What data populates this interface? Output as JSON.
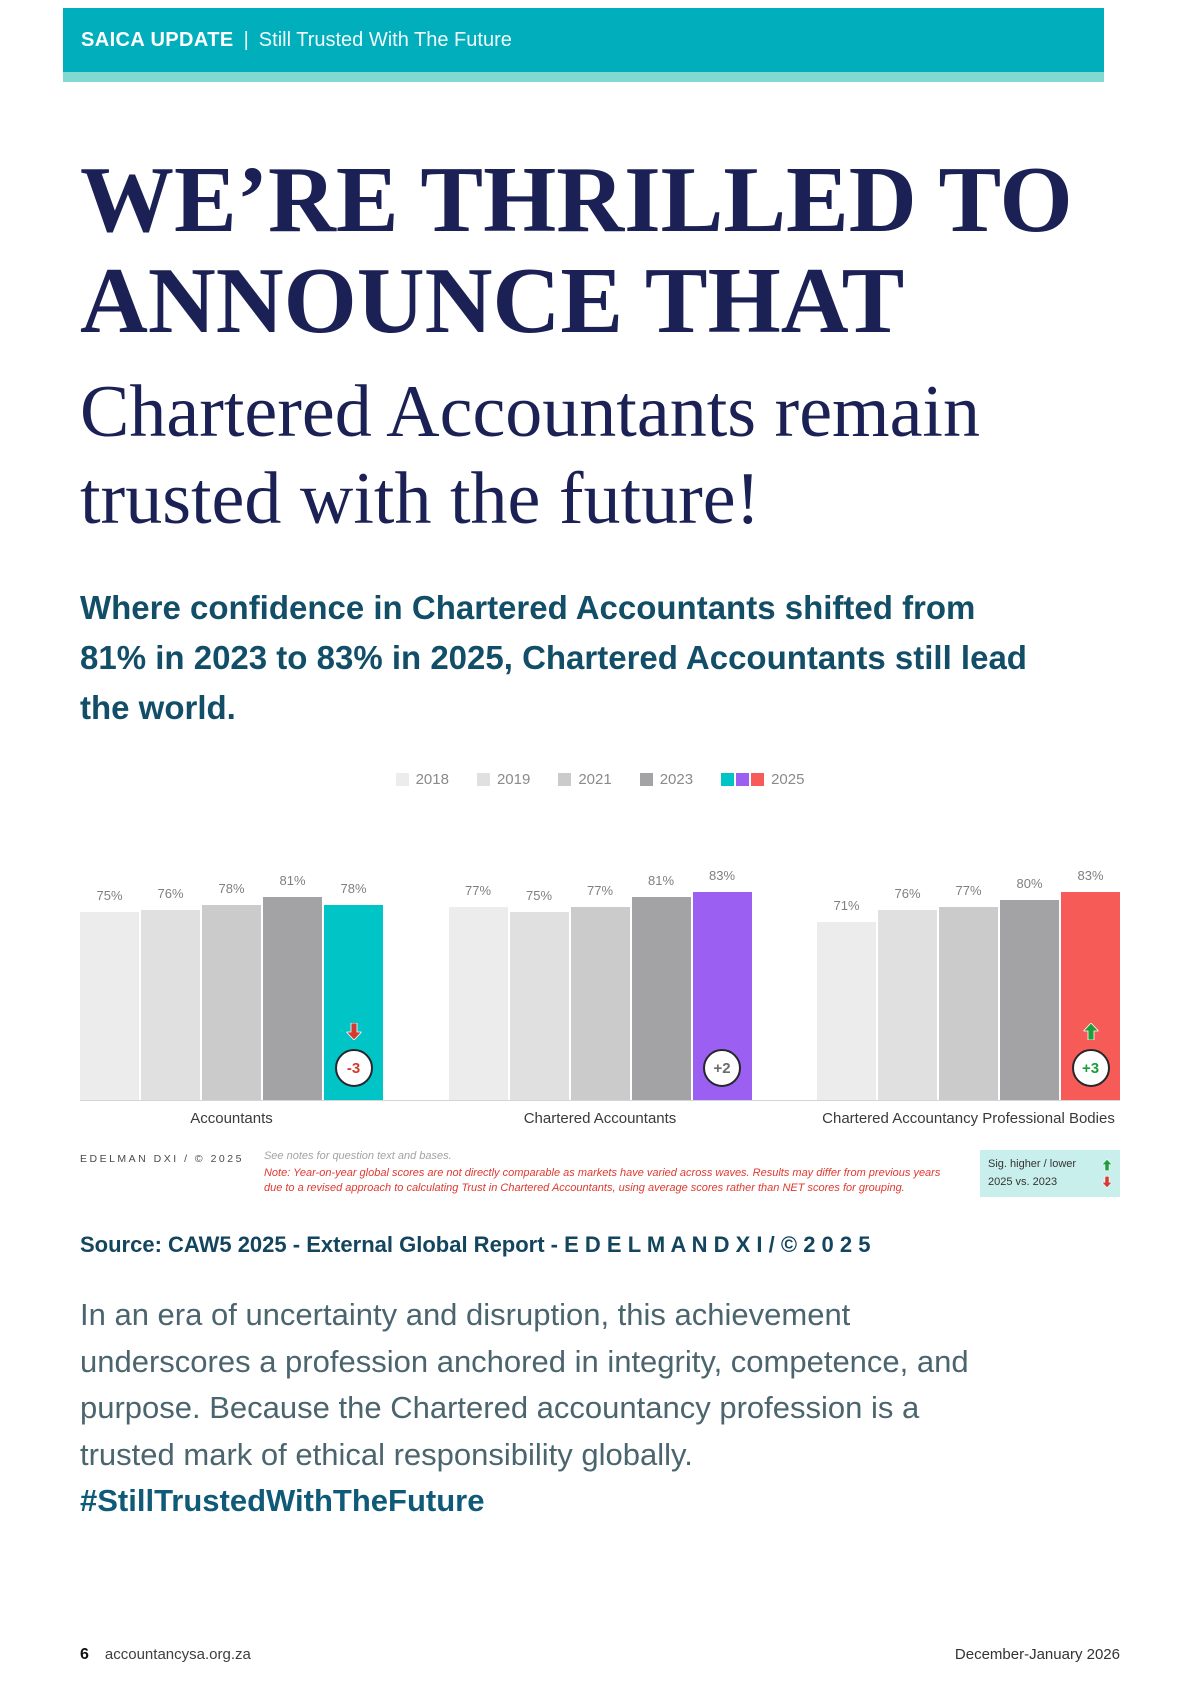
{
  "header": {
    "brand": "SAICA UPDATE",
    "separator": "|",
    "tagline": "Still Trusted With The Future"
  },
  "hero": {
    "title_line1": "WE’RE THRILLED TO",
    "title_line2": "ANNOUNCE THAT",
    "subtitle_line1": "Chartered Accountants remain",
    "subtitle_line2": "trusted with the future!"
  },
  "intro": "Where confidence in Chartered Accountants shifted from 81% in 2023 to 83% in 2025, Chartered Accountants still lead the world.",
  "chart_data": {
    "type": "bar",
    "title": "",
    "categories": [
      "Accountants",
      "Chartered Accountants",
      "Chartered Accountancy Professional Bodies"
    ],
    "series": [
      {
        "name": "2018",
        "values": [
          75,
          77,
          71
        ]
      },
      {
        "name": "2019",
        "values": [
          76,
          75,
          76
        ]
      },
      {
        "name": "2021",
        "values": [
          78,
          77,
          77
        ]
      },
      {
        "name": "2023",
        "values": [
          81,
          81,
          80
        ]
      },
      {
        "name": "2025",
        "values": [
          78,
          83,
          83
        ]
      }
    ],
    "series_gray_colors": [
      "#ececec",
      "#e0e0e0",
      "#cbcbcb",
      "#a3a3a5"
    ],
    "colors_2025": [
      "#00c4c6",
      "#9b5ff2",
      "#f65b58"
    ],
    "deltas": [
      {
        "label": "-3",
        "direction": "down",
        "color": "#d43a2f",
        "arrow_color": "#d43a2f"
      },
      {
        "label": "+2",
        "direction": "none",
        "color": "#6b6b6b",
        "arrow_color": ""
      },
      {
        "label": "+3",
        "direction": "up",
        "color": "#1f9d3c",
        "arrow_color": "#1f9d3c"
      }
    ],
    "value_suffix": "%",
    "ylim": [
      0,
      100
    ],
    "legend_position": "top"
  },
  "chart_footer": {
    "credit": "EDELMAN DXI / © 2025",
    "note_gray": "See notes for question text and bases.",
    "note_red": "Note: Year-on-year global scores are not directly comparable as markets have varied across waves. Results may differ from previous years due to a revised approach to calculating Trust in Chartered Accountants, using average scores rather than NET scores for grouping.",
    "sig": {
      "line1": "Sig. higher / lower",
      "line2": "2025 vs. 2023",
      "up_color": "#1f9d3c",
      "down_color": "#d43a2f",
      "box_color": "#c9efec"
    }
  },
  "source": "Source: CAW5 2025 - External Global Report - E D E L M A N D X I / © 2 0 2 5",
  "body": {
    "text": "In an era of uncertainty and disruption, this achievement underscores a profession anchored in integrity, competence, and purpose. Because the Chartered accountancy profession is a trusted mark of ethical responsibility globally.",
    "hashtag": "#StillTrustedWithTheFuture"
  },
  "footer": {
    "page_number": "6",
    "website": "accountancysa.org.za",
    "issue_date": "December-January 2026"
  },
  "colors": {
    "header_teal": "#00aebc",
    "accent_mint": "#82d9d2",
    "heading_navy": "#1b2154",
    "intro_blue": "#124e68"
  }
}
